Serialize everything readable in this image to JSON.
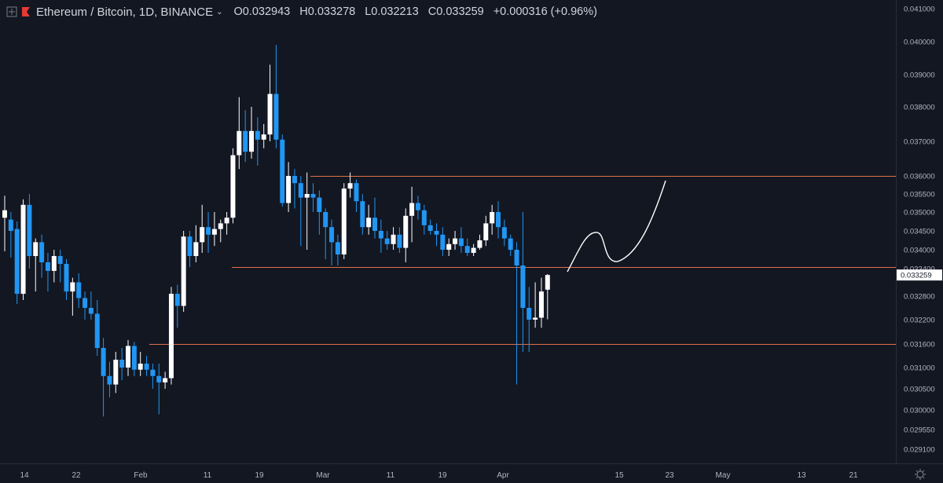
{
  "header": {
    "symbol": "Ethereum / Bitcoin, 1D, BINANCE",
    "open": "O0.032943",
    "high": "H0.033278",
    "low": "L0.032213",
    "close": "C0.033259",
    "change": "+0.000316 (+0.96%)"
  },
  "colors": {
    "background": "#131722",
    "up_candle": "#ffffff",
    "down_candle": "#2196f3",
    "level_line": "#e0704a",
    "text": "#b2b5be"
  },
  "icons": [
    "expand-icon",
    "flag-icon",
    "chevron-down-icon",
    "gear-icon"
  ],
  "chart_data": {
    "type": "candlestick",
    "price_axis": {
      "ticks": [
        "0.041000",
        "0.040000",
        "0.039000",
        "0.038000",
        "0.037000",
        "0.036000",
        "0.035500",
        "0.035000",
        "0.034500",
        "0.034000",
        "0.033400",
        "0.032800",
        "0.032200",
        "0.031600",
        "0.031000",
        "0.030500",
        "0.030000",
        "0.029550",
        "0.029100"
      ]
    },
    "date_axis": {
      "ticks": [
        "14",
        "22",
        "Feb",
        "11",
        "19",
        "Mar",
        "11",
        "19",
        "Apr",
        "15",
        "23",
        "May",
        "13",
        "21"
      ]
    },
    "current_price_label": "0.033259",
    "horizontal_levels": [
      0.036,
      0.03345,
      0.0316
    ],
    "ohlc": [
      [
        0.03485,
        0.03545,
        0.03395,
        0.03505
      ],
      [
        0.0348,
        0.035,
        0.03375,
        0.0345
      ],
      [
        0.03455,
        0.03475,
        0.0326,
        0.03285
      ],
      [
        0.03285,
        0.03535,
        0.0327,
        0.0352
      ],
      [
        0.0352,
        0.0355,
        0.0334,
        0.0338
      ],
      [
        0.0338,
        0.0343,
        0.0329,
        0.0342
      ],
      [
        0.0342,
        0.0344,
        0.0332,
        0.0336
      ],
      [
        0.0336,
        0.0339,
        0.0329,
        0.03335
      ],
      [
        0.03335,
        0.034,
        0.0331,
        0.0338
      ],
      [
        0.0338,
        0.034,
        0.0331,
        0.03355
      ],
      [
        0.03355,
        0.0337,
        0.0327,
        0.0329
      ],
      [
        0.0329,
        0.0332,
        0.0323,
        0.0331
      ],
      [
        0.0331,
        0.0333,
        0.0325,
        0.03275
      ],
      [
        0.03275,
        0.0329,
        0.0322,
        0.0325
      ],
      [
        0.0325,
        0.0329,
        0.0322,
        0.03235
      ],
      [
        0.03235,
        0.0327,
        0.0313,
        0.0315
      ],
      [
        0.0315,
        0.03175,
        0.02985,
        0.0308
      ],
      [
        0.0308,
        0.03115,
        0.0303,
        0.0306
      ],
      [
        0.0306,
        0.0314,
        0.0304,
        0.0312
      ],
      [
        0.0312,
        0.0315,
        0.0307,
        0.031
      ],
      [
        0.031,
        0.0317,
        0.0308,
        0.03155
      ],
      [
        0.03155,
        0.03165,
        0.0308,
        0.03095
      ],
      [
        0.03095,
        0.0314,
        0.0308,
        0.0311
      ],
      [
        0.0311,
        0.0313,
        0.0308,
        0.03095
      ],
      [
        0.03095,
        0.0311,
        0.0305,
        0.0308
      ],
      [
        0.0308,
        0.0311,
        0.0299,
        0.03065
      ],
      [
        0.03065,
        0.0309,
        0.0305,
        0.03075
      ],
      [
        0.03075,
        0.033,
        0.0306,
        0.03285
      ],
      [
        0.03285,
        0.03305,
        0.032,
        0.03255
      ],
      [
        0.03255,
        0.0345,
        0.0324,
        0.03435
      ],
      [
        0.03435,
        0.0345,
        0.03345,
        0.0338
      ],
      [
        0.0338,
        0.03465,
        0.0336,
        0.0342
      ],
      [
        0.0342,
        0.0352,
        0.0339,
        0.0346
      ],
      [
        0.0346,
        0.035,
        0.0339,
        0.0344
      ],
      [
        0.0344,
        0.035,
        0.0341,
        0.03455
      ],
      [
        0.03455,
        0.0348,
        0.0342,
        0.0347
      ],
      [
        0.0347,
        0.035,
        0.0344,
        0.03485
      ],
      [
        0.03485,
        0.0368,
        0.0347,
        0.0366
      ],
      [
        0.0366,
        0.0383,
        0.0362,
        0.0373
      ],
      [
        0.0373,
        0.0379,
        0.0364,
        0.0367
      ],
      [
        0.0367,
        0.038,
        0.0365,
        0.0373
      ],
      [
        0.0373,
        0.0377,
        0.0363,
        0.03705
      ],
      [
        0.03705,
        0.0375,
        0.0368,
        0.0372
      ],
      [
        0.0372,
        0.0393,
        0.037,
        0.0384
      ],
      [
        0.0384,
        0.0399,
        0.0368,
        0.03705
      ],
      [
        0.03705,
        0.0372,
        0.03515,
        0.03525
      ],
      [
        0.03525,
        0.0364,
        0.035,
        0.036
      ],
      [
        0.036,
        0.0362,
        0.0351,
        0.0358
      ],
      [
        0.0358,
        0.036,
        0.0341,
        0.0354
      ],
      [
        0.0354,
        0.0361,
        0.034,
        0.0355
      ],
      [
        0.0355,
        0.0358,
        0.035,
        0.0354
      ],
      [
        0.0354,
        0.0356,
        0.0344,
        0.035
      ],
      [
        0.035,
        0.0351,
        0.0337,
        0.0346
      ],
      [
        0.0346,
        0.0348,
        0.0335,
        0.0342
      ],
      [
        0.0342,
        0.0344,
        0.0335,
        0.03385
      ],
      [
        0.03385,
        0.0358,
        0.0337,
        0.03565
      ],
      [
        0.03565,
        0.0361,
        0.0354,
        0.0358
      ],
      [
        0.0358,
        0.0359,
        0.035,
        0.0353
      ],
      [
        0.0353,
        0.0355,
        0.0344,
        0.0346
      ],
      [
        0.0346,
        0.0352,
        0.0344,
        0.03485
      ],
      [
        0.03485,
        0.0354,
        0.0343,
        0.0345
      ],
      [
        0.0345,
        0.0348,
        0.0339,
        0.0343
      ],
      [
        0.0343,
        0.0345,
        0.034,
        0.03415
      ],
      [
        0.03415,
        0.0346,
        0.034,
        0.0344
      ],
      [
        0.0344,
        0.0346,
        0.0339,
        0.03405
      ],
      [
        0.03405,
        0.0351,
        0.0336,
        0.0349
      ],
      [
        0.0349,
        0.0357,
        0.0342,
        0.03525
      ],
      [
        0.03525,
        0.03545,
        0.0348,
        0.03505
      ],
      [
        0.03505,
        0.0352,
        0.0344,
        0.03465
      ],
      [
        0.03465,
        0.0348,
        0.0344,
        0.0345
      ],
      [
        0.0345,
        0.0347,
        0.0341,
        0.0344
      ],
      [
        0.0344,
        0.0346,
        0.0338,
        0.034
      ],
      [
        0.034,
        0.0343,
        0.0338,
        0.03415
      ],
      [
        0.03415,
        0.0345,
        0.034,
        0.0343
      ],
      [
        0.0343,
        0.0346,
        0.0339,
        0.0341
      ],
      [
        0.0341,
        0.0343,
        0.0338,
        0.0339
      ],
      [
        0.0339,
        0.03415,
        0.0338,
        0.03405
      ],
      [
        0.03405,
        0.0344,
        0.034,
        0.03425
      ],
      [
        0.03425,
        0.0349,
        0.0341,
        0.0347
      ],
      [
        0.0347,
        0.0352,
        0.0344,
        0.035
      ],
      [
        0.035,
        0.0353,
        0.0343,
        0.0346
      ],
      [
        0.0346,
        0.0348,
        0.0341,
        0.0343
      ],
      [
        0.0343,
        0.0344,
        0.0338,
        0.034
      ],
      [
        0.034,
        0.0342,
        0.0306,
        0.0335
      ],
      [
        0.0335,
        0.035,
        0.0314,
        0.0325
      ],
      [
        0.0325,
        0.033,
        0.0314,
        0.0322
      ],
      [
        0.0322,
        0.0331,
        0.032,
        0.03225
      ],
      [
        0.03225,
        0.0332,
        0.032,
        0.0329
      ],
      [
        0.03294,
        0.03328,
        0.03221,
        0.03326
      ]
    ]
  }
}
